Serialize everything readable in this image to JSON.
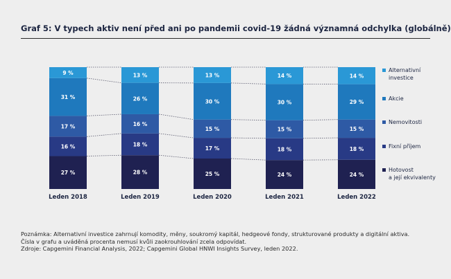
{
  "header": {
    "title": "Graf 5: V typech aktiv není před ani po pandemii covid-19 žádná významná odchylka (globálně)"
  },
  "chart_data": {
    "type": "bar",
    "stacked": true,
    "categories": [
      "Leden 2018",
      "Leden 2019",
      "Leden 2020",
      "Leden 2021",
      "Leden 2022"
    ],
    "series": [
      {
        "name": "Hotovost a její ekvivalenty",
        "legend_lines": [
          "Hotovost",
          "a její ekvivalenty"
        ],
        "values": [
          27,
          28,
          25,
          24,
          24
        ],
        "color": "#1f2151"
      },
      {
        "name": "Fixní příjem",
        "legend_lines": [
          "Fixní příjem"
        ],
        "values": [
          16,
          18,
          17,
          18,
          18
        ],
        "color": "#283a85"
      },
      {
        "name": "Nemovitosti",
        "legend_lines": [
          "Nemovitosti"
        ],
        "values": [
          17,
          16,
          15,
          15,
          15
        ],
        "color": "#2e5aa5"
      },
      {
        "name": "Akcie",
        "legend_lines": [
          "Akcie"
        ],
        "values": [
          31,
          26,
          30,
          30,
          29
        ],
        "color": "#1f79bd"
      },
      {
        "name": "Alternativní investice",
        "legend_lines": [
          "Alternativní",
          "investice"
        ],
        "values": [
          9,
          13,
          13,
          14,
          14
        ],
        "color": "#2a98d6"
      }
    ],
    "value_suffix": " %",
    "legend_position": "right",
    "connector_lines": "dotted"
  },
  "notes": {
    "note": "Poznámka: Alternativní investice zahrnují komodity, měny, soukromý kapitál, hedgeové fondy, strukturované produkty a digitální aktiva.",
    "rounding": "Čísla v grafu a uváděná procenta nemusí kvůli zaokrouhlování zcela odpovídat.",
    "sources": "Zdroje: Capgemini Financial Analysis, 2022; Capgemini Global HNWI Insights Survey, leden 2022."
  }
}
